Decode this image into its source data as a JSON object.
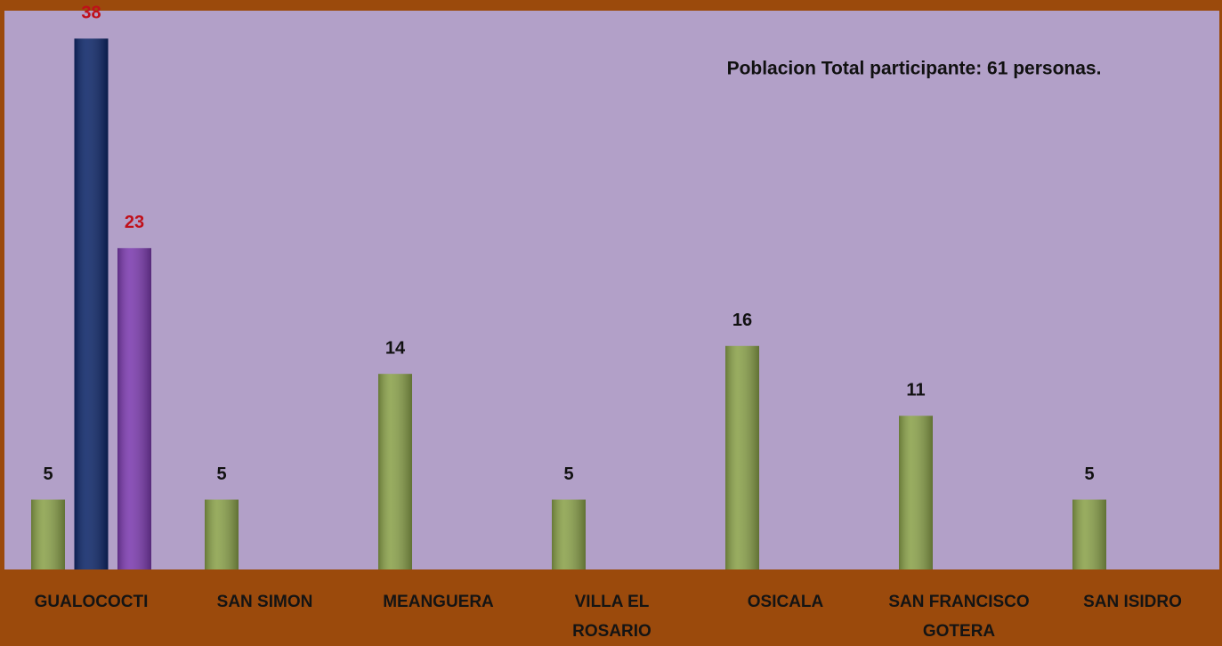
{
  "chart_data": {
    "type": "bar",
    "annotation": "Poblacion Total participante: 61 personas.",
    "categories": [
      "GUALOCOCTI",
      "SAN SIMON",
      "MEANGUERA",
      "VILLA EL ROSARIO",
      "OSICALA",
      "SAN FRANCISCO GOTERA",
      "SAN ISIDRO"
    ],
    "series": [
      {
        "color": "#8aa14a",
        "values": [
          5,
          5,
          14,
          5,
          16,
          11,
          5
        ]
      },
      {
        "color": "#0d2668",
        "values": [
          38,
          null,
          null,
          null,
          null,
          null,
          null
        ]
      },
      {
        "color": "#7b3aae",
        "values": [
          23,
          null,
          null,
          null,
          null,
          null,
          null
        ]
      }
    ],
    "ylim": [
      0,
      40
    ]
  }
}
